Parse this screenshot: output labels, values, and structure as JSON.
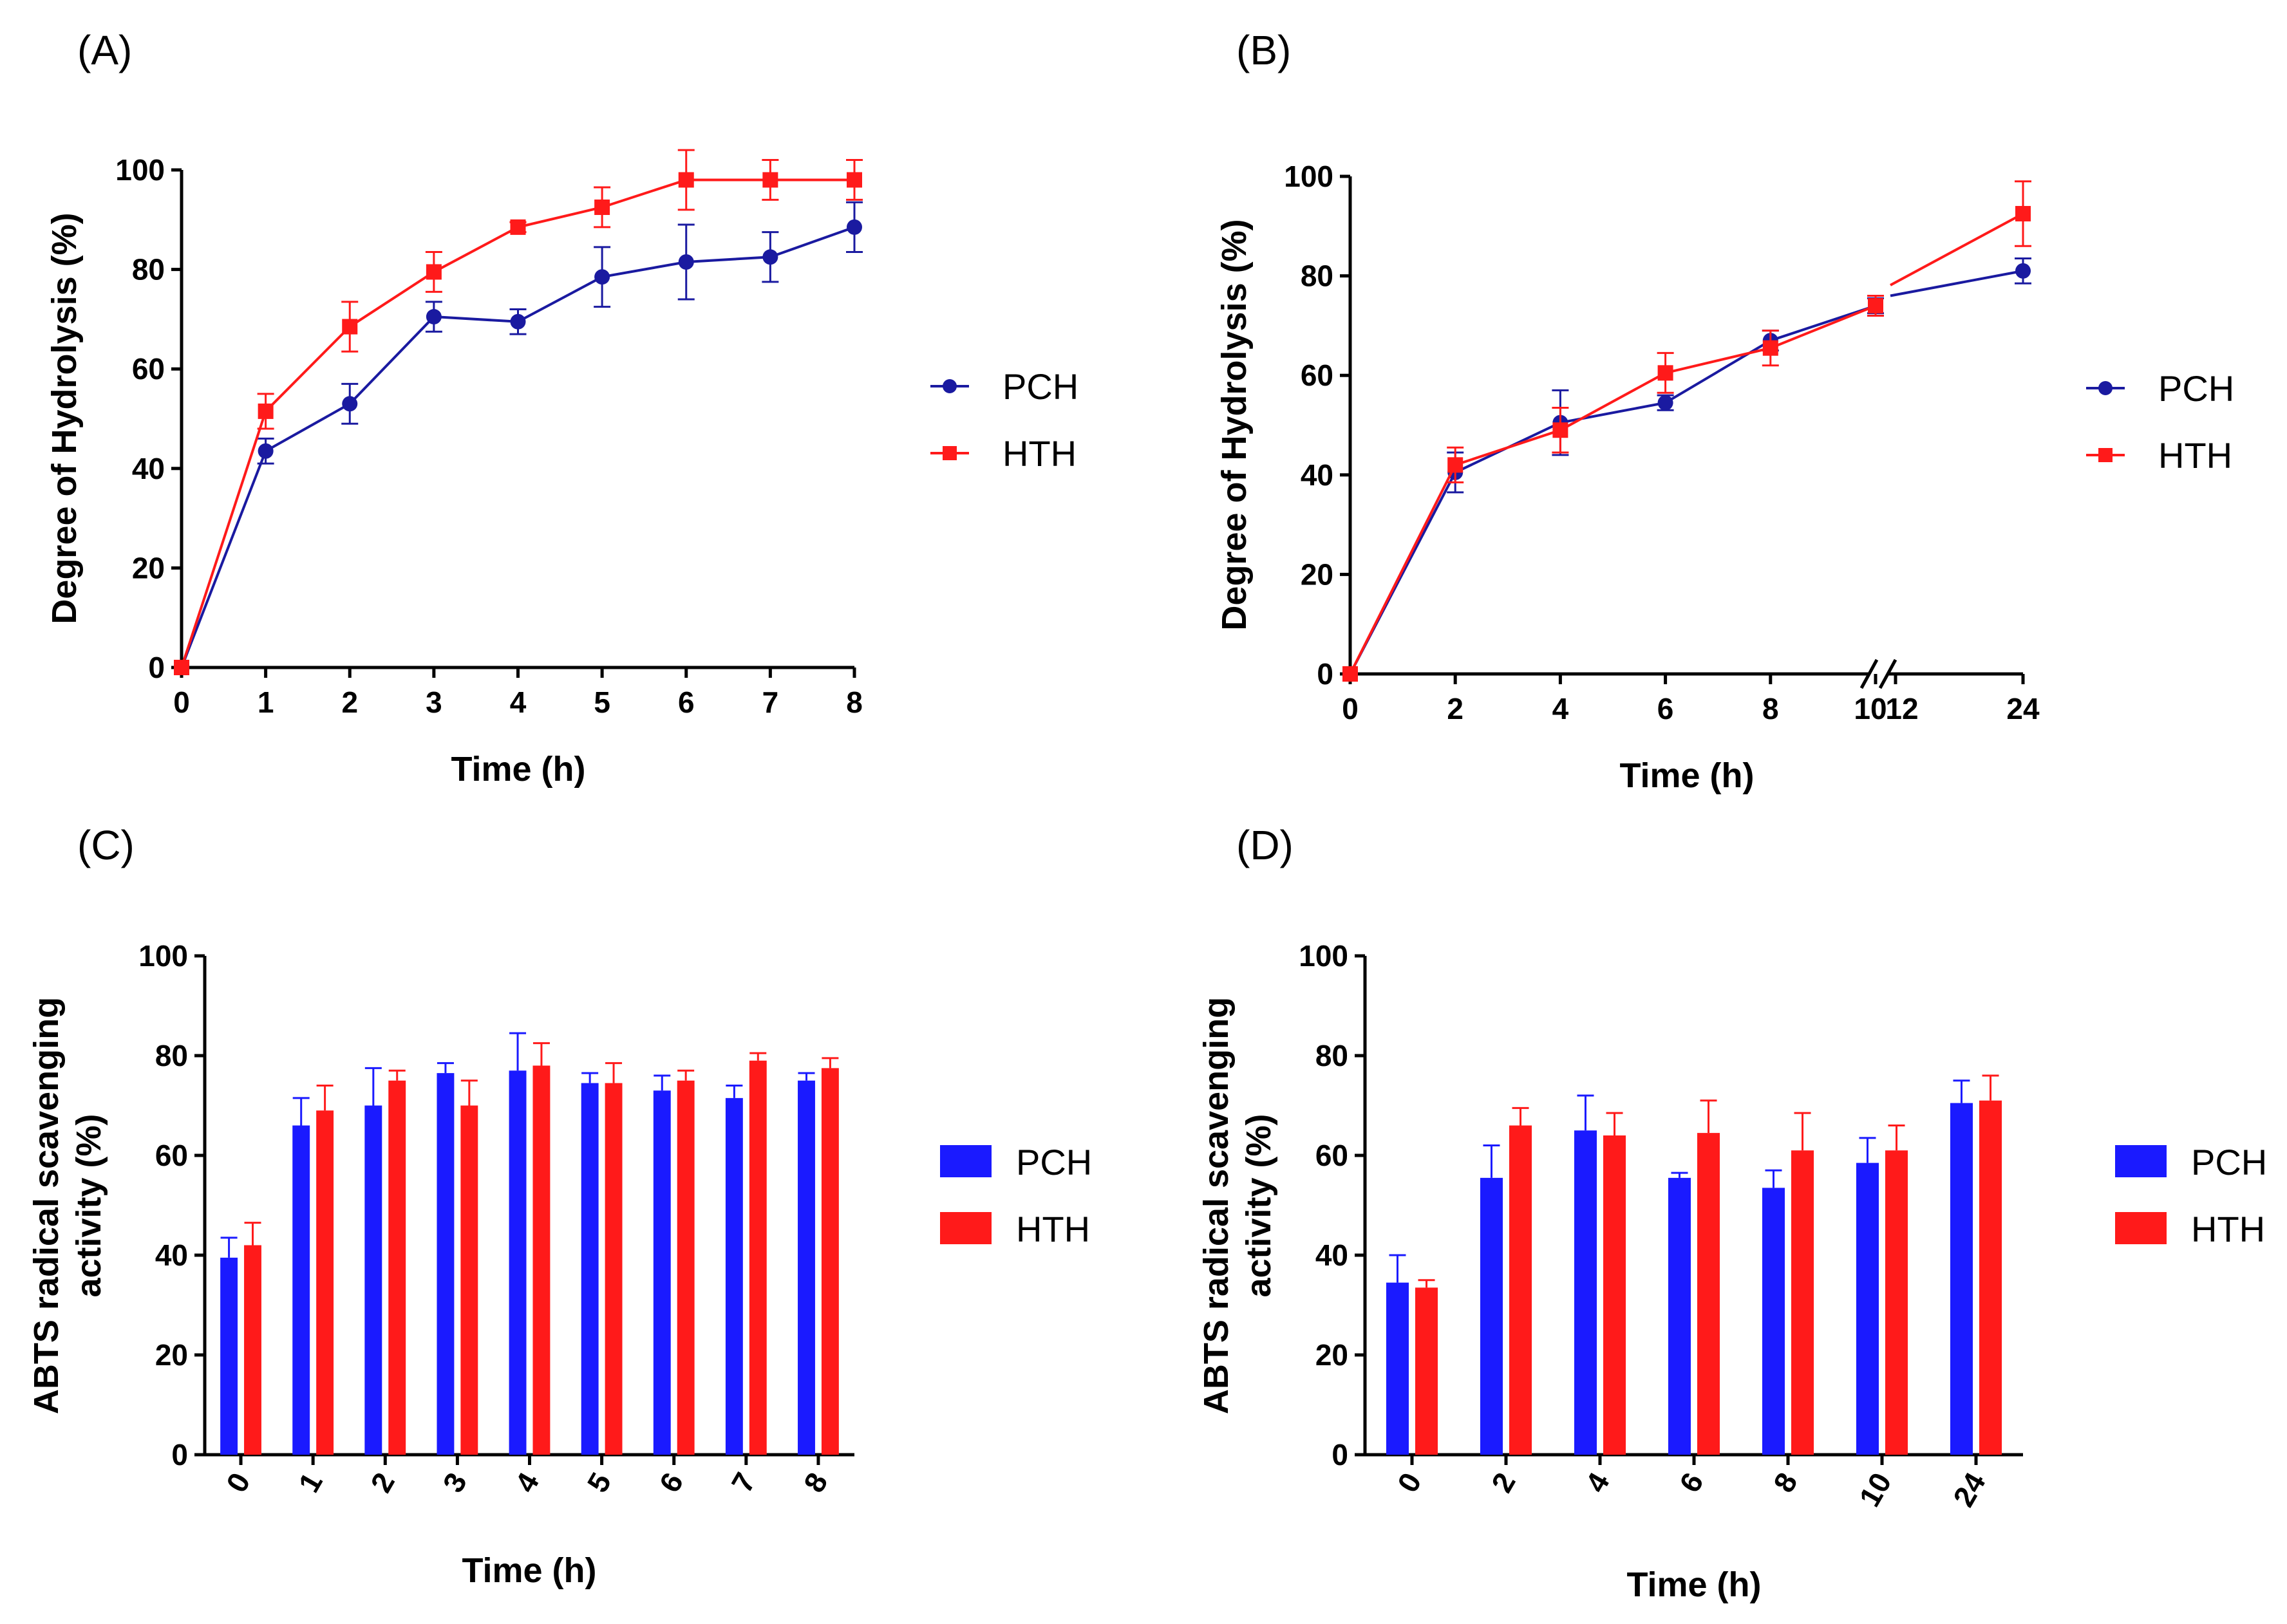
{
  "chart_data": [
    {
      "id": "A",
      "panel_label": "(A)",
      "type": "line",
      "xlabel": "Time (h)",
      "ylabel": "Degree of Hydrolysis (%)",
      "ylim": [
        0,
        100
      ],
      "yticks": [
        0,
        20,
        40,
        60,
        80,
        100
      ],
      "x": [
        0,
        1,
        2,
        3,
        4,
        5,
        6,
        7,
        8
      ],
      "xtick_labels": [
        "0",
        "1",
        "2",
        "3",
        "4",
        "5",
        "6",
        "7",
        "8"
      ],
      "series": [
        {
          "name": "PCH",
          "color": "#1a1aa0",
          "marker": "circle",
          "values": [
            0,
            43.5,
            53,
            70.5,
            69.5,
            78.5,
            81.5,
            82.5,
            88.5
          ],
          "errors": [
            0,
            2.5,
            4,
            3,
            2.5,
            6,
            7.5,
            5,
            5
          ]
        },
        {
          "name": "HTH",
          "color": "#ff1a1a",
          "marker": "square",
          "values": [
            0,
            51.5,
            68.5,
            79.5,
            88.5,
            92.5,
            98,
            98,
            98
          ],
          "errors": [
            0,
            3.5,
            5,
            4,
            1,
            4,
            6,
            4,
            4
          ]
        }
      ]
    },
    {
      "id": "B",
      "panel_label": "(B)",
      "type": "line",
      "xlabel": "Time (h)",
      "ylabel": "Degree of Hydrolysis (%)",
      "ylim": [
        0,
        100
      ],
      "yticks": [
        0,
        20,
        40,
        60,
        80,
        100
      ],
      "x": [
        0,
        2,
        4,
        6,
        8,
        10,
        24
      ],
      "xtick_labels": [
        "0",
        "2",
        "4",
        "6",
        "8",
        "10",
        "12",
        "24"
      ],
      "axis_break": "between 10 and 12",
      "series": [
        {
          "name": "PCH",
          "color": "#1a1aa0",
          "marker": "circle",
          "values": [
            0,
            40.5,
            50.5,
            54.5,
            67,
            74,
            81
          ],
          "errors": [
            0,
            4,
            6.5,
            1.5,
            2,
            1.5,
            2.5
          ]
        },
        {
          "name": "HTH",
          "color": "#ff1a1a",
          "marker": "square",
          "values": [
            0,
            42,
            49,
            60.5,
            65.5,
            74,
            92.5
          ],
          "errors": [
            0,
            3.5,
            4.5,
            4,
            3.5,
            2,
            6.5
          ]
        }
      ]
    },
    {
      "id": "C",
      "panel_label": "(C)",
      "type": "bar",
      "xlabel": "Time (h)",
      "ylabel": "ABTS radical scavenging activity (%)",
      "ylabel_lines": [
        "ABTS radical scavenging",
        "activity (%)"
      ],
      "ylim": [
        0,
        100
      ],
      "yticks": [
        0,
        20,
        40,
        60,
        80,
        100
      ],
      "categories": [
        "0",
        "1",
        "2",
        "3",
        "4",
        "5",
        "6",
        "7",
        "8"
      ],
      "series": [
        {
          "name": "PCH",
          "color": "#1a1aff",
          "values": [
            39.5,
            66,
            70,
            76.5,
            77,
            74.5,
            73,
            71.5,
            75
          ],
          "errors": [
            4,
            5.5,
            7.5,
            2,
            7.5,
            2,
            3,
            2.5,
            1.5
          ]
        },
        {
          "name": "HTH",
          "color": "#ff1a1a",
          "values": [
            42,
            69,
            75,
            70,
            78,
            74.5,
            75,
            79,
            77.5
          ],
          "errors": [
            4.5,
            5,
            2,
            5,
            4.5,
            4,
            2,
            1.5,
            2
          ]
        }
      ]
    },
    {
      "id": "D",
      "panel_label": "(D)",
      "type": "bar",
      "xlabel": "Time (h)",
      "ylabel": "ABTS radical scavenging activity (%)",
      "ylabel_lines": [
        "ABTS radical scavenging",
        "activity (%)"
      ],
      "ylim": [
        0,
        100
      ],
      "yticks": [
        0,
        20,
        40,
        60,
        80,
        100
      ],
      "categories": [
        "0",
        "2",
        "4",
        "6",
        "8",
        "10",
        "24"
      ],
      "series": [
        {
          "name": "PCH",
          "color": "#1a1aff",
          "values": [
            34.5,
            55.5,
            65,
            55.5,
            53.5,
            58.5,
            70.5
          ],
          "errors": [
            5.5,
            6.5,
            7,
            1,
            3.5,
            5,
            4.5
          ]
        },
        {
          "name": "HTH",
          "color": "#ff1a1a",
          "values": [
            33.5,
            66,
            64,
            64.5,
            61,
            61,
            71
          ],
          "errors": [
            1.5,
            3.5,
            4.5,
            6.5,
            7.5,
            5,
            5
          ]
        }
      ]
    }
  ]
}
